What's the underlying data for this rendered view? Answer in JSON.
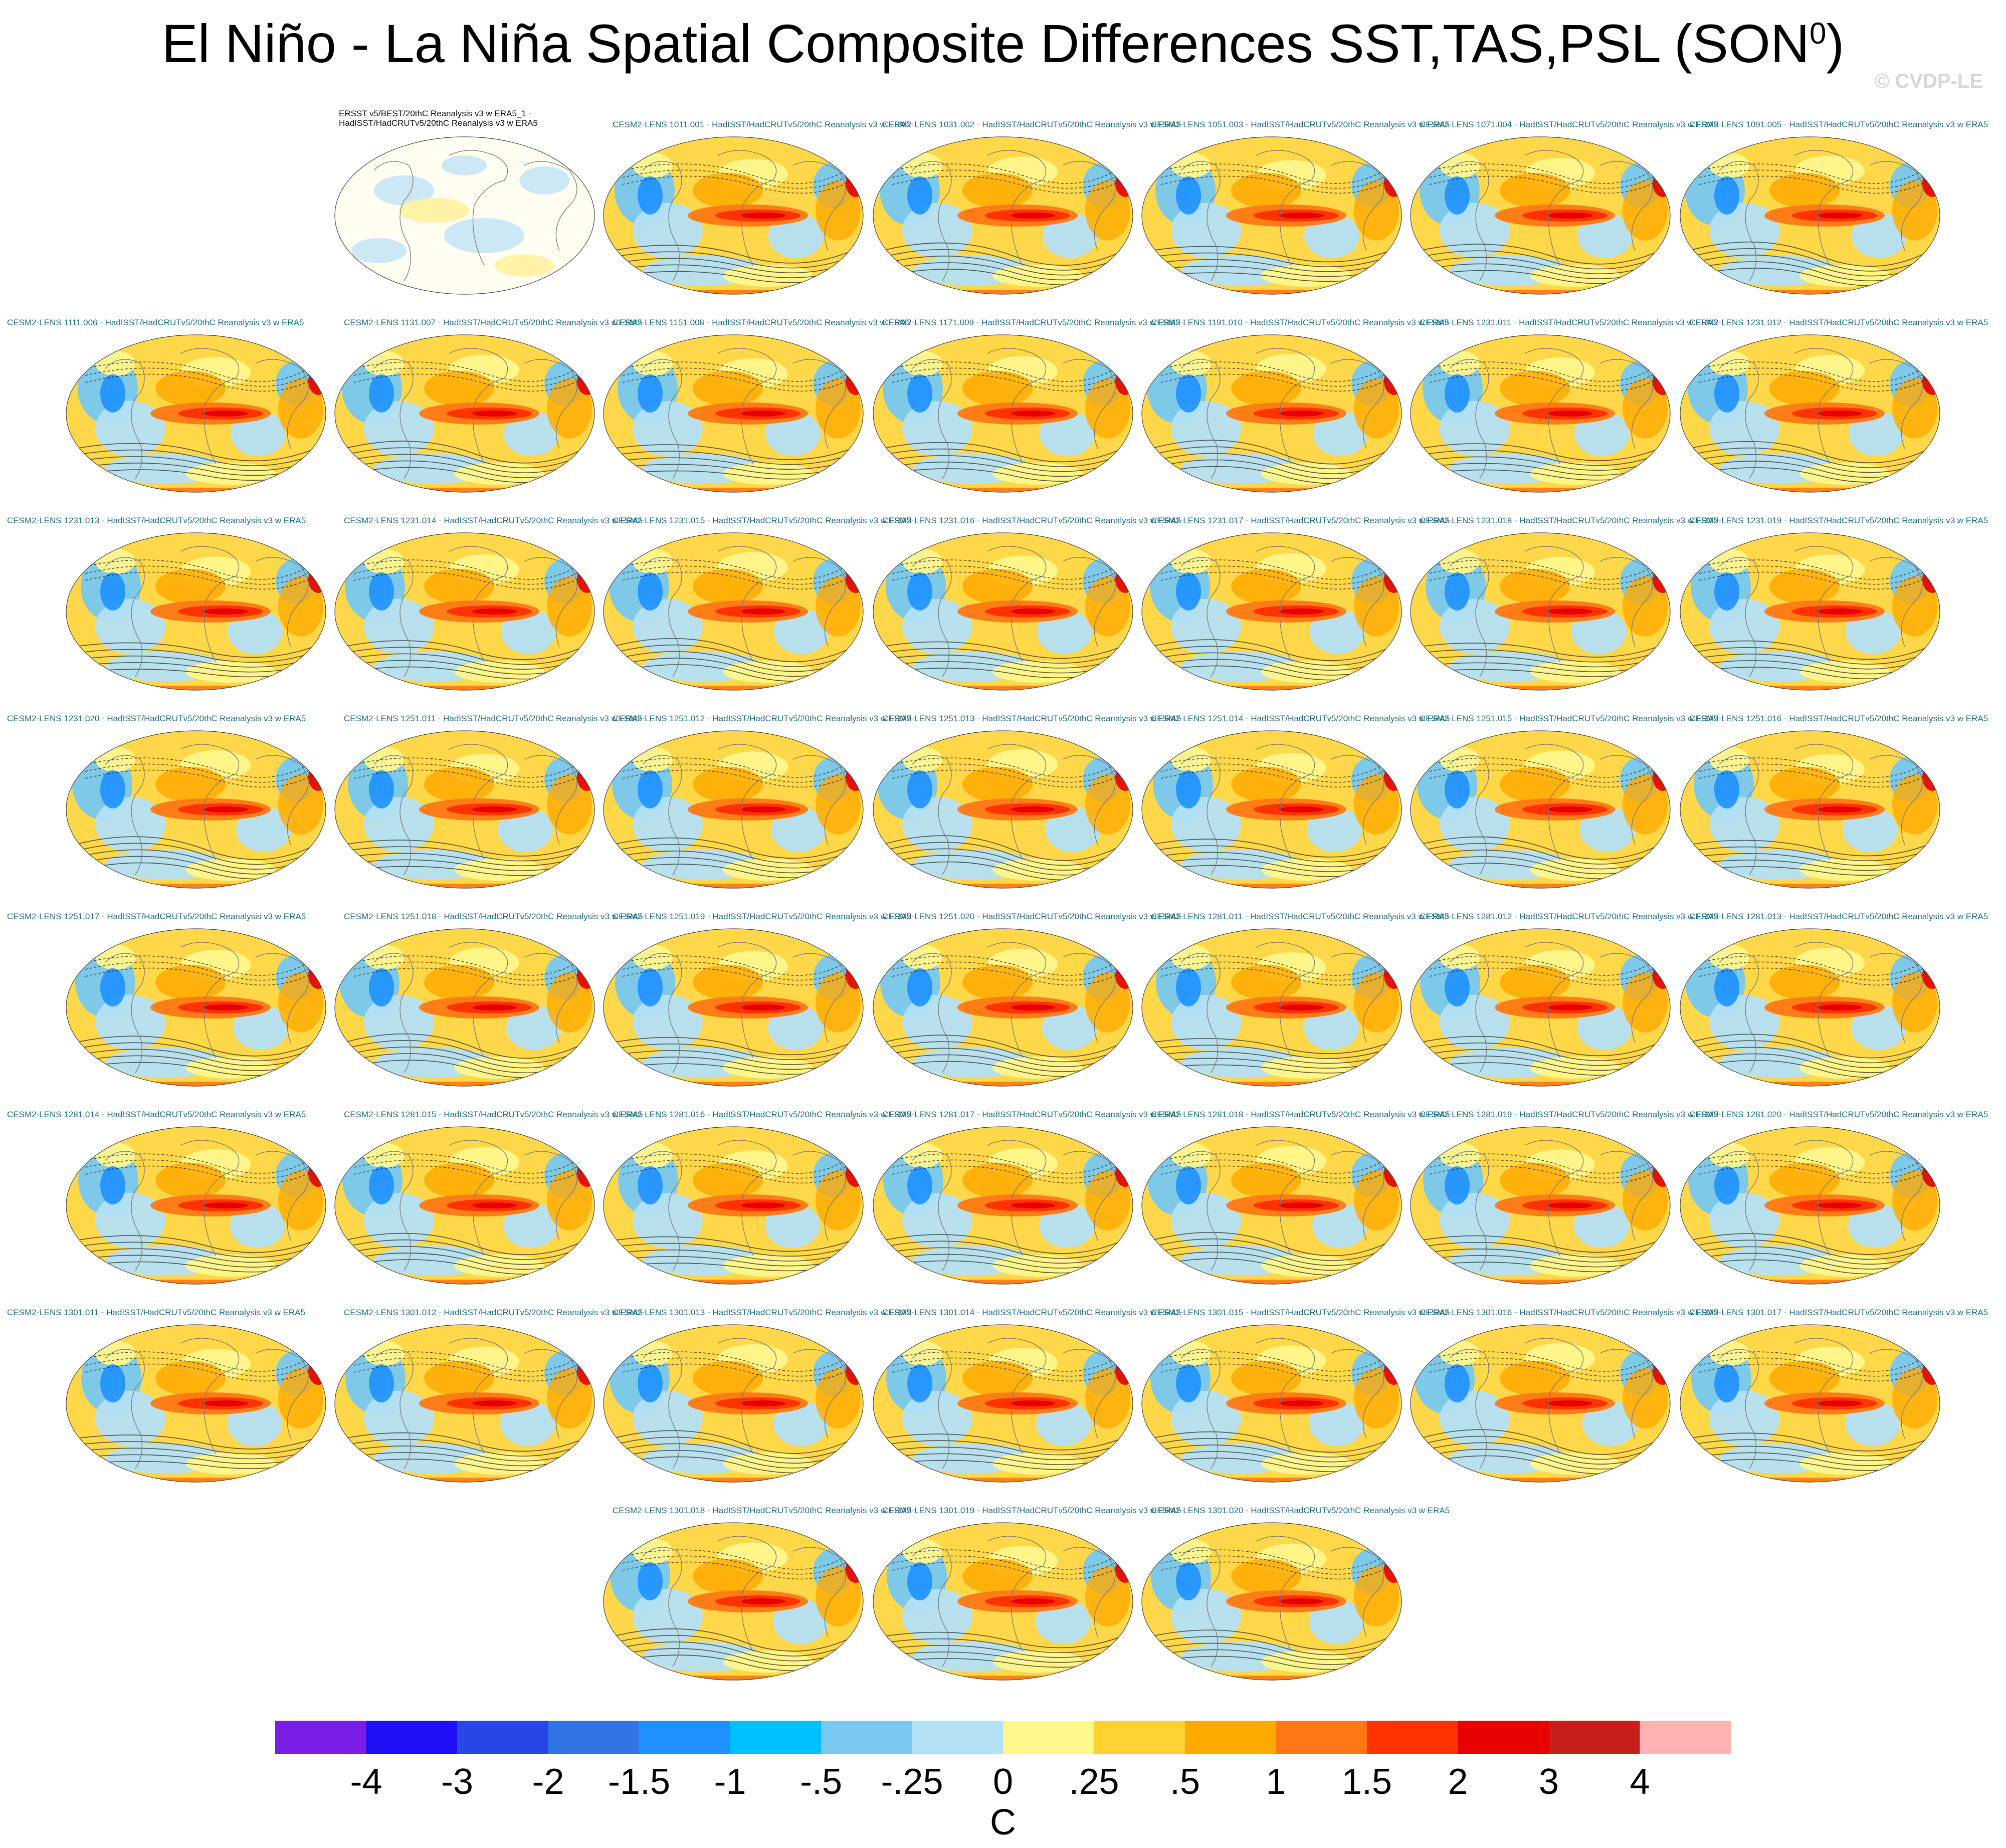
{
  "title": "El Niño - La Niña Spatial Composite Differences SST,TAS,PSL (SON",
  "title_superscript": "0",
  "title_close": ")",
  "watermark": "© CVDP-LE",
  "panels": [
    {
      "label": "ERSST v5/BEST/20thC Reanalysis v3 w ERA5_1 - HadISST/HadCRUTv5/20thC Reanalysis v3 w ERA5",
      "type": "observation"
    },
    {
      "label": "CESM2-LENS 1011.001 - HadISST/HadCRUTv5/20thC Reanalysis v3 w ERA5"
    },
    {
      "label": "CESM2-LENS 1031.002 - HadISST/HadCRUTv5/20thC Reanalysis v3 w ERA5"
    },
    {
      "label": "CESM2-LENS 1051.003 - HadISST/HadCRUTv5/20thC Reanalysis v3 w ERA5"
    },
    {
      "label": "CESM2-LENS 1071.004 - HadISST/HadCRUTv5/20thC Reanalysis v3 w ERA5"
    },
    {
      "label": "CESM2-LENS 1091.005 - HadISST/HadCRUTv5/20thC Reanalysis v3 w ERA5"
    },
    {
      "label": "CESM2-LENS 1111.006 - HadISST/HadCRUTv5/20thC Reanalysis v3 w ERA5"
    },
    {
      "label": "CESM2-LENS 1131.007 - HadISST/HadCRUTv5/20thC Reanalysis v3 w ERA5"
    },
    {
      "label": "CESM2-LENS 1151.008 - HadISST/HadCRUTv5/20thC Reanalysis v3 w ERA5"
    },
    {
      "label": "CESM2-LENS 1171.009 - HadISST/HadCRUTv5/20thC Reanalysis v3 w ERA5"
    },
    {
      "label": "CESM2-LENS 1191.010 - HadISST/HadCRUTv5/20thC Reanalysis v3 w ERA5"
    },
    {
      "label": "CESM2-LENS 1231.011 - HadISST/HadCRUTv5/20thC Reanalysis v3 w ERA5"
    },
    {
      "label": "CESM2-LENS 1231.012 - HadISST/HadCRUTv5/20thC Reanalysis v3 w ERA5"
    },
    {
      "label": "CESM2-LENS 1231.013 - HadISST/HadCRUTv5/20thC Reanalysis v3 w ERA5"
    },
    {
      "label": "CESM2-LENS 1231.014 - HadISST/HadCRUTv5/20thC Reanalysis v3 w ERA5"
    },
    {
      "label": "CESM2-LENS 1231.015 - HadISST/HadCRUTv5/20thC Reanalysis v3 w ERA5"
    },
    {
      "label": "CESM2-LENS 1231.016 - HadISST/HadCRUTv5/20thC Reanalysis v3 w ERA5"
    },
    {
      "label": "CESM2-LENS 1231.017 - HadISST/HadCRUTv5/20thC Reanalysis v3 w ERA5"
    },
    {
      "label": "CESM2-LENS 1231.018 - HadISST/HadCRUTv5/20thC Reanalysis v3 w ERA5"
    },
    {
      "label": "CESM2-LENS 1231.019 - HadISST/HadCRUTv5/20thC Reanalysis v3 w ERA5"
    },
    {
      "label": "CESM2-LENS 1231.020 - HadISST/HadCRUTv5/20thC Reanalysis v3 w ERA5"
    },
    {
      "label": "CESM2-LENS 1251.011 - HadISST/HadCRUTv5/20thC Reanalysis v3 w ERA5"
    },
    {
      "label": "CESM2-LENS 1251.012 - HadISST/HadCRUTv5/20thC Reanalysis v3 w ERA5"
    },
    {
      "label": "CESM2-LENS 1251.013 - HadISST/HadCRUTv5/20thC Reanalysis v3 w ERA5"
    },
    {
      "label": "CESM2-LENS 1251.014 - HadISST/HadCRUTv5/20thC Reanalysis v3 w ERA5"
    },
    {
      "label": "CESM2-LENS 1251.015 - HadISST/HadCRUTv5/20thC Reanalysis v3 w ERA5"
    },
    {
      "label": "CESM2-LENS 1251.016 - HadISST/HadCRUTv5/20thC Reanalysis v3 w ERA5"
    },
    {
      "label": "CESM2-LENS 1251.017 - HadISST/HadCRUTv5/20thC Reanalysis v3 w ERA5"
    },
    {
      "label": "CESM2-LENS 1251.018 - HadISST/HadCRUTv5/20thC Reanalysis v3 w ERA5"
    },
    {
      "label": "CESM2-LENS 1251.019 - HadISST/HadCRUTv5/20thC Reanalysis v3 w ERA5"
    },
    {
      "label": "CESM2-LENS 1251.020 - HadISST/HadCRUTv5/20thC Reanalysis v3 w ERA5"
    },
    {
      "label": "CESM2-LENS 1281.011 - HadISST/HadCRUTv5/20thC Reanalysis v3 w ERA5"
    },
    {
      "label": "CESM2-LENS 1281.012 - HadISST/HadCRUTv5/20thC Reanalysis v3 w ERA5"
    },
    {
      "label": "CESM2-LENS 1281.013 - HadISST/HadCRUTv5/20thC Reanalysis v3 w ERA5"
    },
    {
      "label": "CESM2-LENS 1281.014 - HadISST/HadCRUTv5/20thC Reanalysis v3 w ERA5"
    },
    {
      "label": "CESM2-LENS 1281.015 - HadISST/HadCRUTv5/20thC Reanalysis v3 w ERA5"
    },
    {
      "label": "CESM2-LENS 1281.016 - HadISST/HadCRUTv5/20thC Reanalysis v3 w ERA5"
    },
    {
      "label": "CESM2-LENS 1281.017 - HadISST/HadCRUTv5/20thC Reanalysis v3 w ERA5"
    },
    {
      "label": "CESM2-LENS 1281.018 - HadISST/HadCRUTv5/20thC Reanalysis v3 w ERA5"
    },
    {
      "label": "CESM2-LENS 1281.019 - HadISST/HadCRUTv5/20thC Reanalysis v3 w ERA5"
    },
    {
      "label": "CESM2-LENS 1281.020 - HadISST/HadCRUTv5/20thC Reanalysis v3 w ERA5"
    },
    {
      "label": "CESM2-LENS 1301.011 - HadISST/HadCRUTv5/20thC Reanalysis v3 w ERA5"
    },
    {
      "label": "CESM2-LENS 1301.012 - HadISST/HadCRUTv5/20thC Reanalysis v3 w ERA5"
    },
    {
      "label": "CESM2-LENS 1301.013 - HadISST/HadCRUTv5/20thC Reanalysis v3 w ERA5"
    },
    {
      "label": "CESM2-LENS 1301.014 - HadISST/HadCRUTv5/20thC Reanalysis v3 w ERA5"
    },
    {
      "label": "CESM2-LENS 1301.015 - HadISST/HadCRUTv5/20thC Reanalysis v3 w ERA5"
    },
    {
      "label": "CESM2-LENS 1301.016 - HadISST/HadCRUTv5/20thC Reanalysis v3 w ERA5"
    },
    {
      "label": "CESM2-LENS 1301.017 - HadISST/HadCRUTv5/20thC Reanalysis v3 w ERA5"
    },
    {
      "label": "CESM2-LENS 1301.018 - HadISST/HadCRUTv5/20thC Reanalysis v3 w ERA5"
    },
    {
      "label": "CESM2-LENS 1301.019 - HadISST/HadCRUTv5/20thC Reanalysis v3 w ERA5"
    },
    {
      "label": "CESM2-LENS 1301.020 - HadISST/HadCRUTv5/20thC Reanalysis v3 w ERA5"
    }
  ],
  "chart_data": {
    "type": "heatmap",
    "title": "El Niño - La Niña Spatial Composite Differences SST,TAS,PSL (SON0)",
    "variables": [
      "SST",
      "TAS",
      "PSL"
    ],
    "season": "SON",
    "projection": "Robinson global maps, one per ensemble member",
    "panel_count": 51,
    "colorbar": {
      "units": "C",
      "tick_labels": [
        "-4",
        "-3",
        "-2",
        "-1.5",
        "-1",
        "-.5",
        "-.25",
        "0",
        ".25",
        ".5",
        "1",
        "1.5",
        "2",
        "3",
        "4"
      ],
      "colors": [
        "#7a1ee6",
        "#1e0ff5",
        "#2846e6",
        "#3273e6",
        "#1e91ff",
        "#00bfff",
        "#78c8f0",
        "#b4e1f5",
        "#fff78c",
        "#ffd232",
        "#ffaa00",
        "#ff7814",
        "#ff3200",
        "#e60000",
        "#c81e1e",
        "#ffb4b4"
      ]
    }
  }
}
